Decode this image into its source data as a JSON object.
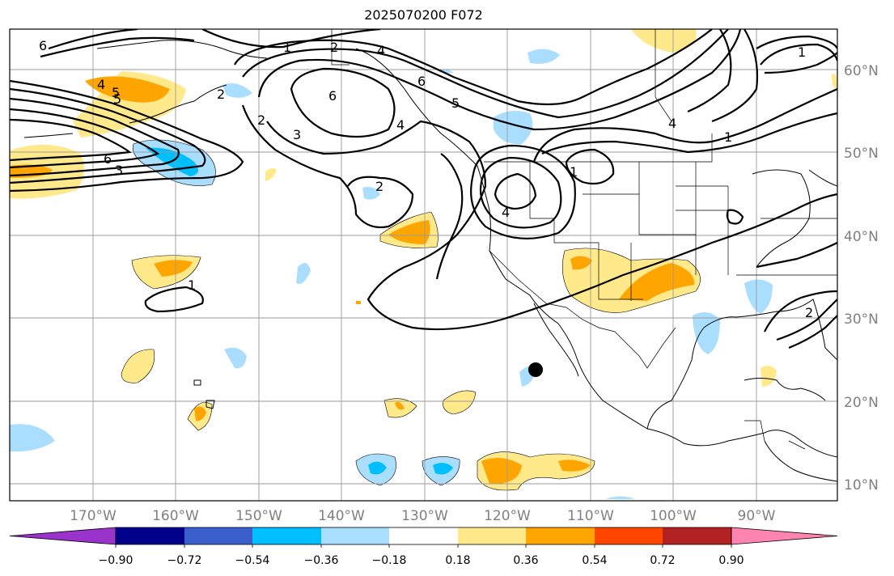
{
  "title": "2025070200 F072",
  "lat_labels": [
    "60°N",
    "50°N",
    "40°N",
    "30°N",
    "20°N",
    "10°N"
  ],
  "lon_labels": [
    "170°W",
    "160°W",
    "150°W",
    "140°W",
    "130°W",
    "120°W",
    "110°W",
    "100°W",
    "90°W"
  ],
  "contour_labels": [
    {
      "text": "6"
    },
    {
      "text": "5"
    },
    {
      "text": "4"
    },
    {
      "text": "1"
    },
    {
      "text": "2"
    },
    {
      "text": "4"
    },
    {
      "text": "4"
    },
    {
      "text": "5"
    },
    {
      "text": "6"
    },
    {
      "text": "3"
    },
    {
      "text": "6"
    },
    {
      "text": "3"
    },
    {
      "text": "2"
    },
    {
      "text": "2"
    },
    {
      "text": "6"
    },
    {
      "text": "5"
    },
    {
      "text": "4"
    },
    {
      "text": "1"
    },
    {
      "text": "1"
    },
    {
      "text": "1"
    },
    {
      "text": "1"
    },
    {
      "text": "2"
    },
    {
      "text": "2"
    },
    {
      "text": "4"
    }
  ],
  "colorbar": {
    "ticks": [
      "−0.90",
      "−0.72",
      "−0.54",
      "−0.36",
      "−0.18",
      "0.18",
      "0.36",
      "0.54",
      "0.72",
      "0.90"
    ],
    "colors": [
      "#9933cc",
      "#00008b",
      "#3a5fcd",
      "#00bfff",
      "#aadeff",
      "#ffffff",
      "#ffe98a",
      "#ffa500",
      "#ff4500",
      "#b22222",
      "#ff85b0"
    ]
  },
  "marker": {
    "label": "location-marker"
  }
}
